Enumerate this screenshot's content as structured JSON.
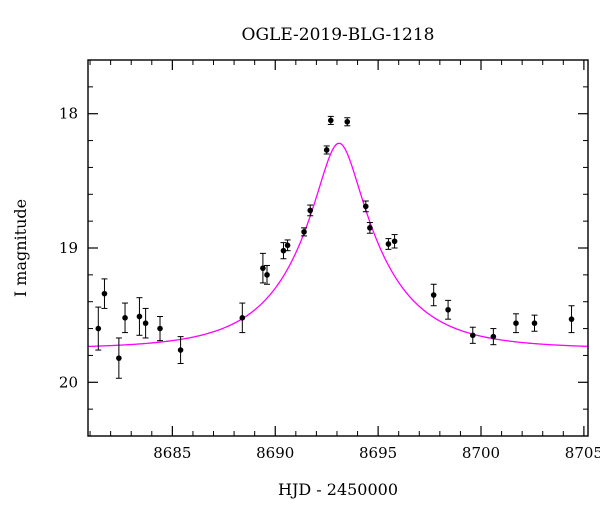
{
  "chart_data": {
    "type": "scatter",
    "title": "OGLE-2019-BLG-1218",
    "xlabel": "HJD - 2450000",
    "ylabel": "I magnitude",
    "xlim": [
      8680.9,
      8705.2
    ],
    "ylim": [
      20.4,
      17.6
    ],
    "y_inverted": true,
    "grid": false,
    "xticks": [
      8685,
      8690,
      8695,
      8700,
      8705
    ],
    "yticks": [
      18,
      19,
      20
    ],
    "xticklabels": [
      "8685",
      "8690",
      "8695",
      "8700",
      "8705"
    ],
    "yticklabels": [
      "18",
      "19",
      "20"
    ],
    "xminor_step": 1,
    "yminor_step": 0.2,
    "series": [
      {
        "type": "scatter",
        "color": "#000000",
        "points": [
          {
            "x": 8681.4,
            "y": 19.6,
            "err": 0.16
          },
          {
            "x": 8681.7,
            "y": 19.34,
            "err": 0.11
          },
          {
            "x": 8682.4,
            "y": 19.82,
            "err": 0.15
          },
          {
            "x": 8682.7,
            "y": 19.52,
            "err": 0.11
          },
          {
            "x": 8683.4,
            "y": 19.51,
            "err": 0.14
          },
          {
            "x": 8683.7,
            "y": 19.56,
            "err": 0.11
          },
          {
            "x": 8684.4,
            "y": 19.6,
            "err": 0.09
          },
          {
            "x": 8685.4,
            "y": 19.76,
            "err": 0.1
          },
          {
            "x": 8688.4,
            "y": 19.52,
            "err": 0.11
          },
          {
            "x": 8689.4,
            "y": 19.15,
            "err": 0.11
          },
          {
            "x": 8689.6,
            "y": 19.2,
            "err": 0.07
          },
          {
            "x": 8690.4,
            "y": 19.02,
            "err": 0.06
          },
          {
            "x": 8690.6,
            "y": 18.98,
            "err": 0.04
          },
          {
            "x": 8691.4,
            "y": 18.88,
            "err": 0.03
          },
          {
            "x": 8691.7,
            "y": 18.72,
            "err": 0.04
          },
          {
            "x": 8692.5,
            "y": 18.27,
            "err": 0.03
          },
          {
            "x": 8692.7,
            "y": 18.05,
            "err": 0.03
          },
          {
            "x": 8693.5,
            "y": 18.06,
            "err": 0.03
          },
          {
            "x": 8694.4,
            "y": 18.69,
            "err": 0.04
          },
          {
            "x": 8694.6,
            "y": 18.85,
            "err": 0.04
          },
          {
            "x": 8695.5,
            "y": 18.97,
            "err": 0.04
          },
          {
            "x": 8695.8,
            "y": 18.95,
            "err": 0.05
          },
          {
            "x": 8697.7,
            "y": 19.35,
            "err": 0.08
          },
          {
            "x": 8698.4,
            "y": 19.46,
            "err": 0.07
          },
          {
            "x": 8699.6,
            "y": 19.65,
            "err": 0.06
          },
          {
            "x": 8700.6,
            "y": 19.66,
            "err": 0.06
          },
          {
            "x": 8701.7,
            "y": 19.56,
            "err": 0.07
          },
          {
            "x": 8702.6,
            "y": 19.56,
            "err": 0.06
          },
          {
            "x": 8704.4,
            "y": 19.53,
            "err": 0.1
          }
        ]
      },
      {
        "type": "line",
        "color": "#ff00ff",
        "model": {
          "kind": "point-lens",
          "t0": 8693.1,
          "tE": 4.0,
          "u0": 0.25,
          "baseline": 19.75
        }
      }
    ]
  }
}
